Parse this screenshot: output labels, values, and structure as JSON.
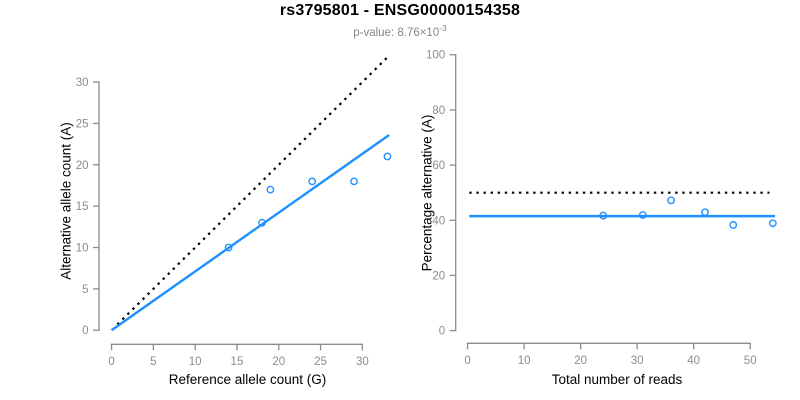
{
  "header": {
    "title": "rs3795801 - ENSG00000154358",
    "subtitle_base": "p-value: 8.76×10",
    "subtitle_exp": "-3"
  },
  "styles": {
    "accent_blue": "#1E90FF",
    "axis_gray": "#8c8c8c",
    "dotted_black": "#000000",
    "title_black": "#000000",
    "subtitle_gray": "#878787"
  },
  "chart_data": [
    {
      "type": "scatter",
      "panel": "left",
      "xlabel": "Reference allele count (G)",
      "ylabel": "Alternative allele count (A)",
      "xlim": [
        -1.5,
        34.0
      ],
      "ylim": [
        -1.7,
        33.2
      ],
      "xticks": [
        0,
        5,
        10,
        15,
        20,
        25,
        30
      ],
      "yticks": [
        0,
        5,
        10,
        15,
        20,
        25,
        30
      ],
      "grid": false,
      "legend": "none",
      "points": {
        "x": [
          14,
          18,
          19,
          24,
          29,
          33
        ],
        "y": [
          10,
          13,
          17,
          18,
          18,
          21
        ]
      },
      "lines": [
        {
          "name": "identity-line",
          "style": "dotted",
          "color": "#000000",
          "x1": 0.7,
          "y1": 0.7,
          "x2": 32.9,
          "y2": 32.9
        },
        {
          "name": "fit-line",
          "style": "solid",
          "color": "#1E90FF",
          "x1": 0,
          "y1": 0,
          "x2": 33.2,
          "y2": 23.6
        }
      ]
    },
    {
      "type": "scatter",
      "panel": "right",
      "xlabel": "Total number of reads",
      "ylabel": "Percentage alternative (A)",
      "xlim": [
        -2.1,
        54.9
      ],
      "ylim": [
        -4.6,
        104.0
      ],
      "xticks": [
        0,
        10,
        20,
        30,
        40,
        50
      ],
      "yticks": [
        0,
        20,
        40,
        60,
        80,
        100
      ],
      "grid": false,
      "legend": "none",
      "points": {
        "x": [
          24,
          31,
          36,
          42,
          47,
          54
        ],
        "y": [
          41.7,
          41.9,
          47.2,
          42.9,
          38.3,
          38.9
        ]
      },
      "lines": [
        {
          "name": "expected-50pct-line",
          "style": "dotted",
          "color": "#000000",
          "x1": 0.3,
          "y1": 50,
          "x2": 53.4,
          "y2": 50
        },
        {
          "name": "fitted-percentage-line",
          "style": "solid",
          "color": "#1E90FF",
          "x1": 0.3,
          "y1": 41.5,
          "x2": 54.4,
          "y2": 41.5
        }
      ]
    }
  ]
}
